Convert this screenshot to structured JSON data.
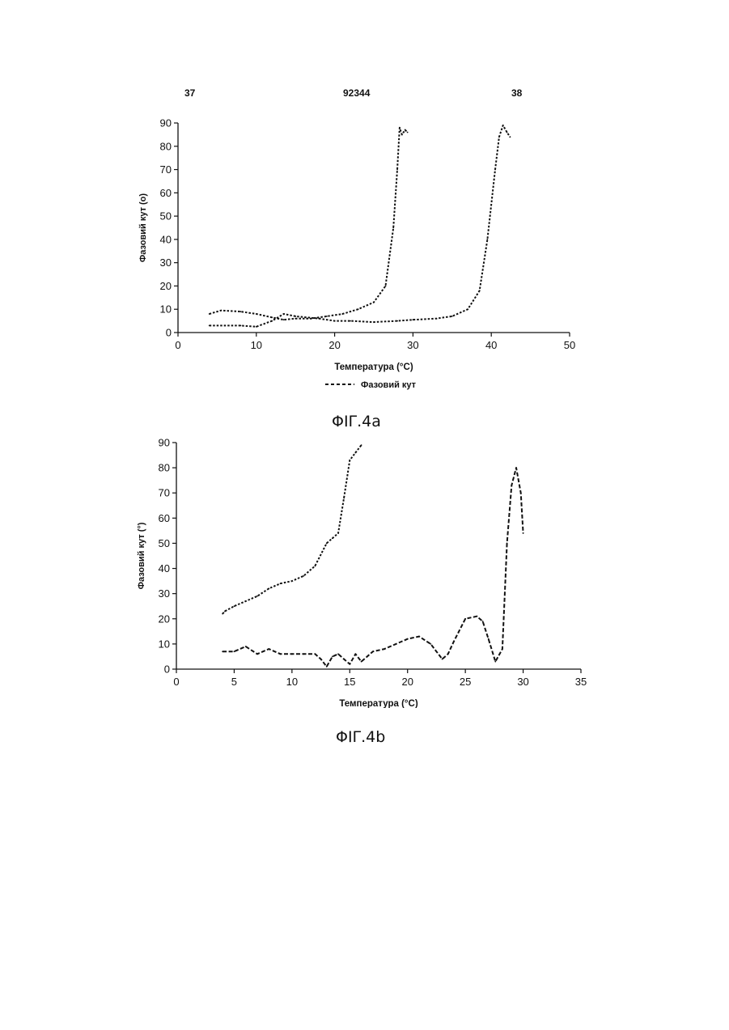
{
  "header": {
    "left": "37",
    "center": "92344",
    "right": "38"
  },
  "captions": {
    "fig_a": "ΦΙΓ.4a",
    "fig_b": "ΦΙΓ.4b"
  },
  "chart_data": [
    {
      "type": "line",
      "title": "",
      "xlabel": "Температура (°C)",
      "ylabel": "Фазовий кут (o)",
      "xlim": [
        0,
        50
      ],
      "ylim": [
        0,
        90
      ],
      "xticks": [
        0,
        10,
        20,
        30,
        40,
        50
      ],
      "yticks": [
        0,
        10,
        20,
        30,
        40,
        50,
        60,
        70,
        80,
        90
      ],
      "grid": false,
      "legend": {
        "position": "bottom",
        "entries": [
          "Фазовий кут"
        ]
      },
      "series": [
        {
          "name": "Фазовий кут",
          "style": "dotted",
          "x": [
            4,
            5.5,
            8,
            10,
            12,
            13.5,
            15,
            17,
            19,
            21,
            23,
            25,
            26.5,
            27.5,
            28,
            28.3,
            28.6,
            29,
            29.3
          ],
          "y": [
            8,
            9.5,
            9,
            8,
            6.5,
            5.5,
            6,
            6,
            7,
            8,
            10,
            13,
            20,
            45,
            70,
            88,
            85,
            87,
            86
          ]
        },
        {
          "name": "",
          "style": "dotted",
          "x": [
            4,
            6,
            8,
            10,
            12,
            13.5,
            15,
            18,
            20,
            22,
            25,
            28,
            30,
            33,
            35,
            37,
            38.5,
            39.5,
            40.5,
            41,
            41.5,
            42,
            42.4
          ],
          "y": [
            3,
            3,
            3,
            2.5,
            5,
            8,
            7,
            6,
            5,
            5,
            4.5,
            5,
            5.5,
            6,
            7,
            10,
            18,
            40,
            70,
            84,
            89,
            86,
            84
          ]
        }
      ]
    },
    {
      "type": "line",
      "title": "",
      "xlabel": "Температура (°C)",
      "ylabel": "Фазовий кут (°)",
      "xlim": [
        0,
        35
      ],
      "ylim": [
        0,
        90
      ],
      "xticks": [
        0,
        5,
        10,
        15,
        20,
        25,
        30,
        35
      ],
      "yticks": [
        0,
        10,
        20,
        30,
        40,
        50,
        60,
        70,
        80,
        90
      ],
      "grid": false,
      "legend": null,
      "series": [
        {
          "name": "",
          "style": "dotted",
          "x": [
            4,
            4.2,
            5,
            6,
            7,
            8,
            9,
            10,
            11,
            12,
            13,
            13.5,
            14,
            14.5,
            15,
            15.5,
            16
          ],
          "y": [
            22,
            23,
            25,
            27,
            29,
            32,
            34,
            35,
            37,
            41,
            50,
            52,
            54,
            68,
            83,
            86,
            89
          ]
        },
        {
          "name": "",
          "style": "dashed",
          "x": [
            4,
            5,
            6,
            7,
            8,
            9,
            10,
            11,
            12,
            12.5,
            13,
            13.5,
            14,
            14.5,
            15,
            15.5,
            16,
            17,
            18,
            19,
            20,
            21,
            22,
            23,
            23.5,
            24,
            25,
            26,
            26.5,
            27,
            27.6,
            28.2,
            28.6,
            29,
            29.4,
            29.8,
            30
          ],
          "y": [
            7,
            7,
            9,
            6,
            8,
            6,
            6,
            6,
            6,
            4,
            1,
            5,
            6,
            4,
            2,
            6,
            3,
            7,
            8,
            10,
            12,
            13,
            10,
            4,
            6,
            11,
            20,
            21,
            19,
            12,
            3,
            8,
            50,
            73,
            80,
            70,
            54
          ]
        }
      ]
    }
  ]
}
